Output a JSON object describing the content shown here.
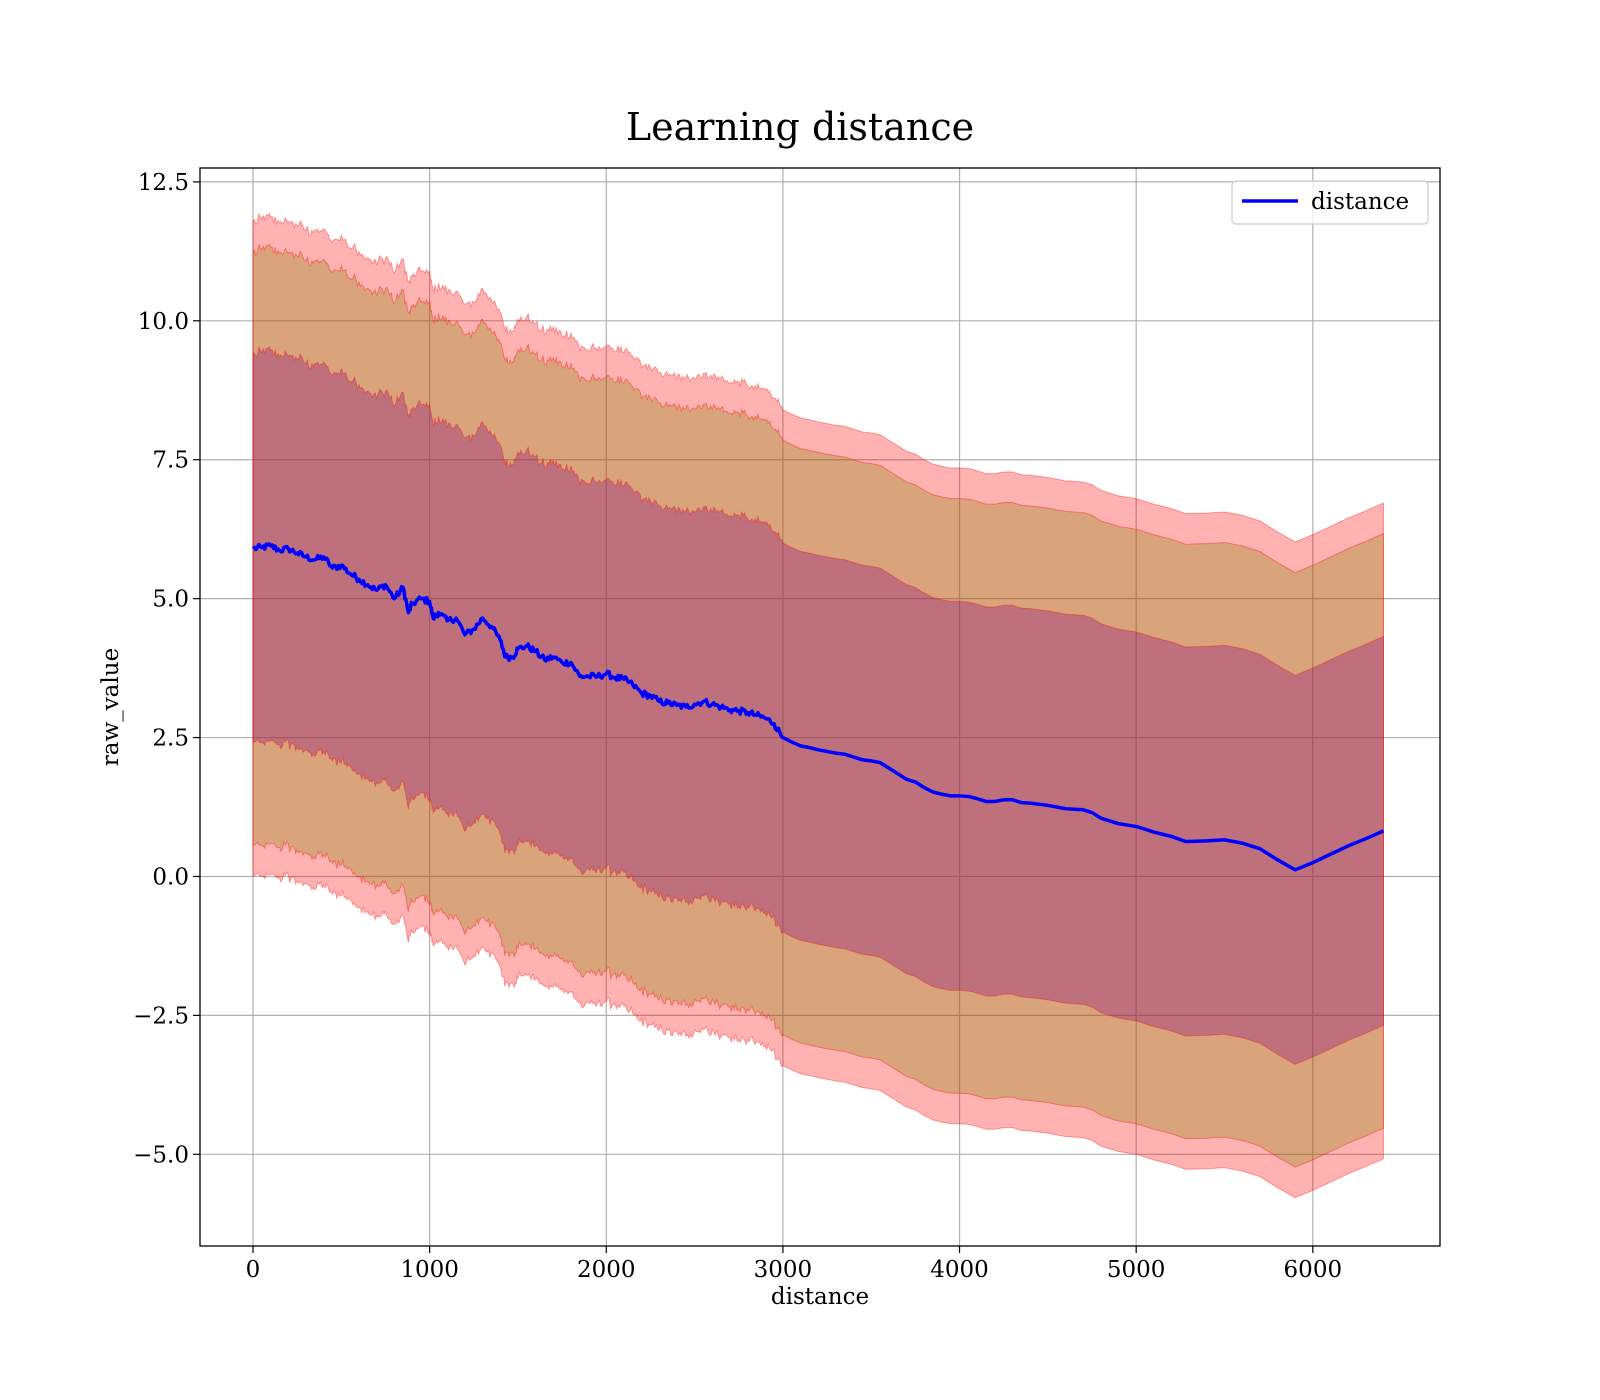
{
  "chart_data": {
    "type": "area",
    "title": "Learning distance",
    "xlabel": "distance",
    "ylabel": "raw_value",
    "xlim": [
      -300,
      6720
    ],
    "ylim": [
      -6.65,
      12.75
    ],
    "xticks": [
      0,
      1000,
      2000,
      3000,
      4000,
      5000,
      6000
    ],
    "xtick_labels": [
      "0",
      "1000",
      "2000",
      "3000",
      "4000",
      "5000",
      "6000"
    ],
    "yticks": [
      -5.0,
      -2.5,
      0.0,
      2.5,
      5.0,
      7.5,
      10.0,
      12.5
    ],
    "ytick_labels": [
      "−5.0",
      "−2.5",
      "0.0",
      "2.5",
      "5.0",
      "7.5",
      "10.0",
      "12.5"
    ],
    "grid": true,
    "legend": {
      "position": "top-right",
      "entries": [
        "distance"
      ]
    },
    "colors": {
      "line": "#0000ff",
      "band_outer": "#ff0000",
      "band_middle": "#808000",
      "band_inner": "#800080",
      "band_edge": "#ff0000"
    },
    "band_offsets": [
      3.5,
      5.35,
      5.9
    ],
    "band_opacity": 0.3,
    "series": [
      {
        "name": "distance",
        "x": [
          0,
          50,
          100,
          150,
          200,
          250,
          300,
          350,
          400,
          450,
          500,
          550,
          600,
          650,
          700,
          750,
          800,
          850,
          880,
          900,
          950,
          1000,
          1020,
          1050,
          1100,
          1150,
          1200,
          1250,
          1300,
          1350,
          1400,
          1430,
          1470,
          1500,
          1550,
          1600,
          1650,
          1700,
          1750,
          1800,
          1850,
          1900,
          1950,
          2000,
          2050,
          2100,
          2150,
          2200,
          2250,
          2300,
          2350,
          2400,
          2450,
          2500,
          2550,
          2600,
          2650,
          2700,
          2750,
          2800,
          2850,
          2900,
          2950,
          3000,
          3050,
          3100,
          3150,
          3200,
          3250,
          3300,
          3350,
          3400,
          3450,
          3500,
          3550,
          3600,
          3650,
          3700,
          3750,
          3800,
          3850,
          3900,
          3950,
          4000,
          4050,
          4100,
          4150,
          4200,
          4250,
          4300,
          4350,
          4400,
          4450,
          4500,
          4550,
          4600,
          4700,
          4750,
          4800,
          4850,
          4900,
          5000,
          5100,
          5200,
          5280,
          5400,
          5500,
          5600,
          5700,
          5800,
          5900,
          6000,
          6100,
          6200,
          6300,
          6400
        ],
        "y": [
          5.9,
          5.92,
          5.95,
          5.87,
          5.9,
          5.82,
          5.75,
          5.7,
          5.75,
          5.55,
          5.6,
          5.45,
          5.35,
          5.25,
          5.15,
          5.25,
          5.0,
          5.2,
          4.75,
          4.9,
          5.0,
          4.95,
          4.65,
          4.75,
          4.6,
          4.65,
          4.35,
          4.45,
          4.65,
          4.5,
          4.25,
          3.95,
          3.95,
          4.1,
          4.15,
          4.05,
          3.9,
          3.95,
          3.85,
          3.85,
          3.6,
          3.6,
          3.6,
          3.65,
          3.58,
          3.55,
          3.45,
          3.3,
          3.25,
          3.15,
          3.12,
          3.08,
          3.05,
          3.1,
          3.15,
          3.1,
          3.05,
          3.0,
          2.98,
          2.95,
          2.9,
          2.85,
          2.75,
          2.5,
          2.42,
          2.35,
          2.32,
          2.28,
          2.25,
          2.22,
          2.2,
          2.15,
          2.1,
          2.08,
          2.05,
          1.95,
          1.85,
          1.75,
          1.7,
          1.6,
          1.52,
          1.48,
          1.45,
          1.45,
          1.44,
          1.4,
          1.35,
          1.35,
          1.38,
          1.38,
          1.33,
          1.32,
          1.3,
          1.28,
          1.25,
          1.22,
          1.2,
          1.15,
          1.05,
          1.0,
          0.95,
          0.9,
          0.8,
          0.72,
          0.63,
          0.64,
          0.66,
          0.6,
          0.5,
          0.3,
          0.12,
          0.25,
          0.4,
          0.55,
          0.68,
          0.82
        ]
      }
    ]
  }
}
